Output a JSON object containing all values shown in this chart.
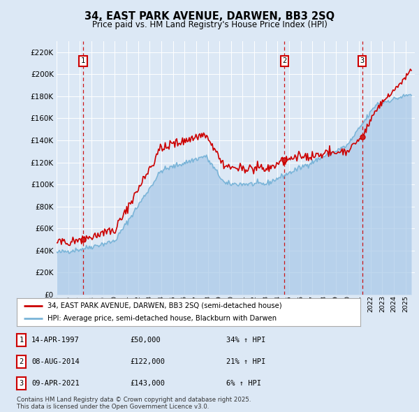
{
  "title_line1": "34, EAST PARK AVENUE, DARWEN, BB3 2SQ",
  "title_line2": "Price paid vs. HM Land Registry's House Price Index (HPI)",
  "background_color": "#dce8f5",
  "plot_bg_color": "#dce8f5",
  "hpi_color": "#7ab4d8",
  "hpi_fill_color": "#a8c8e8",
  "price_color": "#cc0000",
  "ylim": [
    0,
    230000
  ],
  "yticks": [
    0,
    20000,
    40000,
    60000,
    80000,
    100000,
    120000,
    140000,
    160000,
    180000,
    200000,
    220000
  ],
  "sale_year_floats": [
    1997.29,
    2014.6,
    2021.27
  ],
  "sale_prices": [
    50000,
    122000,
    143000
  ],
  "sale_labels": [
    "1",
    "2",
    "3"
  ],
  "sale_info": [
    {
      "label": "1",
      "date": "14-APR-1997",
      "price": "£50,000",
      "hpi": "34% ↑ HPI"
    },
    {
      "label": "2",
      "date": "08-AUG-2014",
      "price": "£122,000",
      "hpi": "21% ↑ HPI"
    },
    {
      "label": "3",
      "date": "09-APR-2021",
      "price": "£143,000",
      "hpi": "6% ↑ HPI"
    }
  ],
  "legend_line1": "34, EAST PARK AVENUE, DARWEN, BB3 2SQ (semi-detached house)",
  "legend_line2": "HPI: Average price, semi-detached house, Blackburn with Darwen",
  "footer": "Contains HM Land Registry data © Crown copyright and database right 2025.\nThis data is licensed under the Open Government Licence v3.0."
}
